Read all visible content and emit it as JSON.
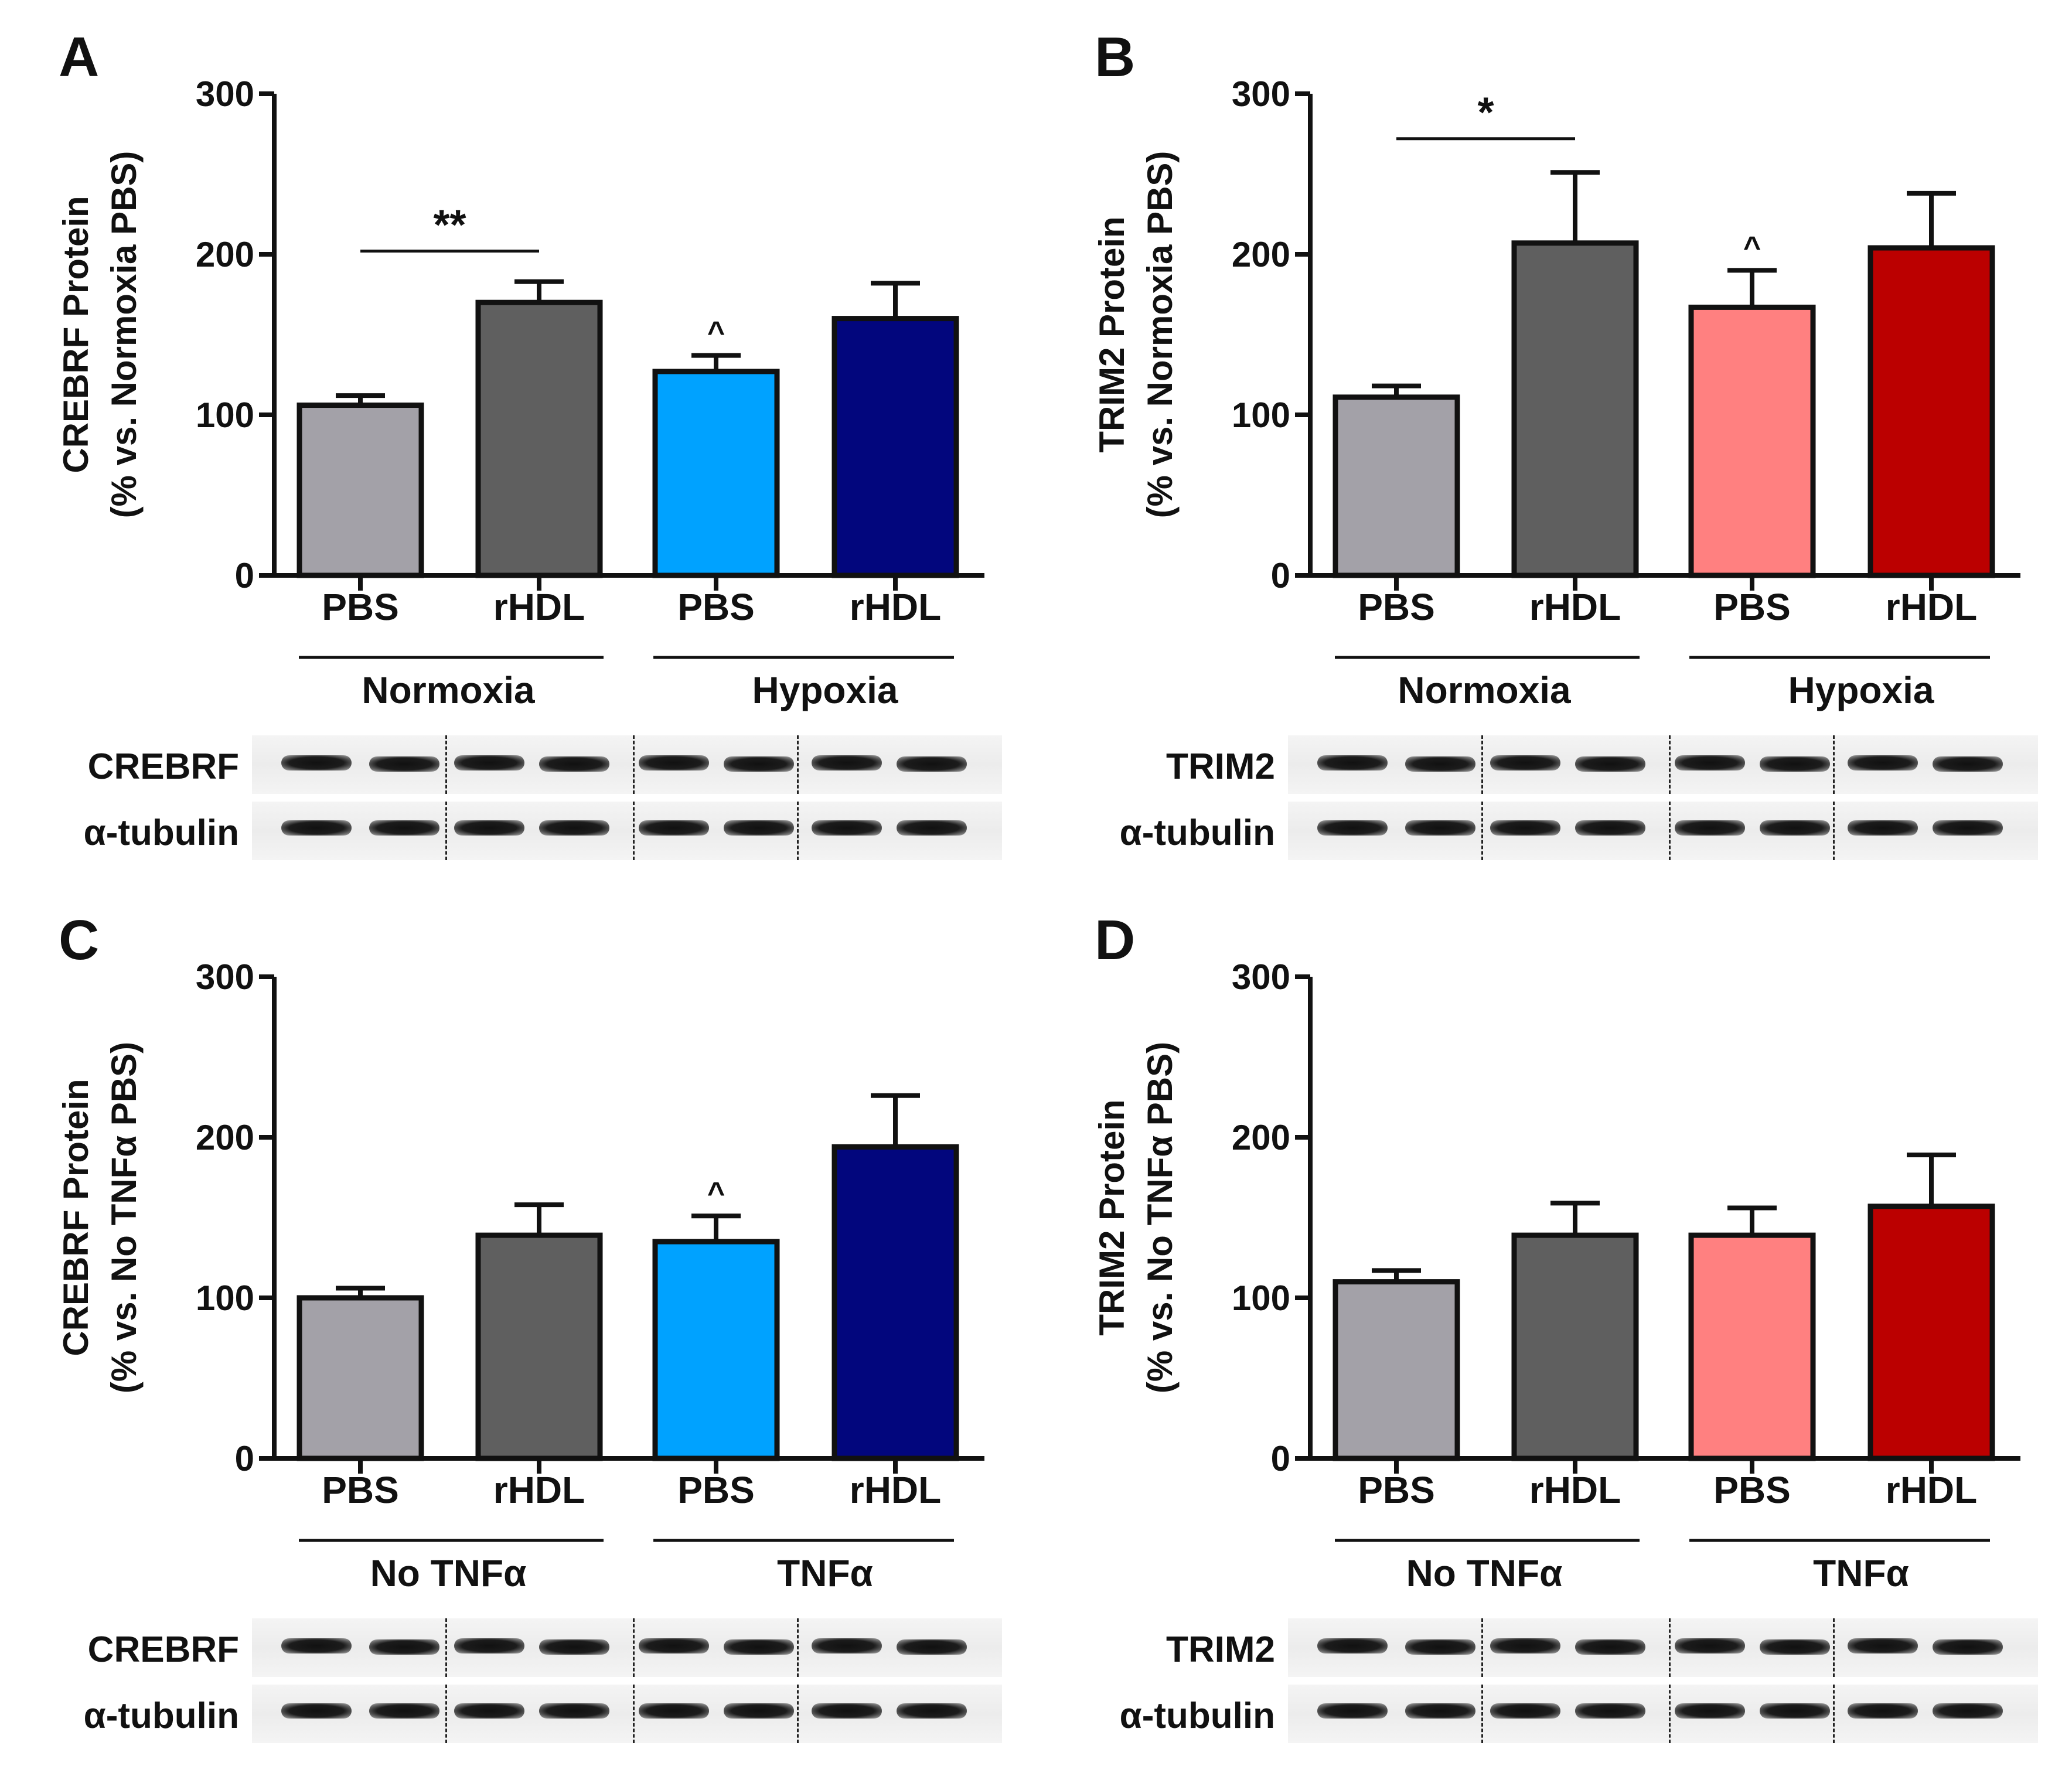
{
  "chart_data": [
    {
      "panel": "A",
      "type": "bar",
      "ylabel": "CREBRF Protein",
      "ylabel2": "(% vs. Normoxia PBS)",
      "ylim": [
        0,
        300
      ],
      "yticks": [
        "0",
        "100",
        "200",
        "300"
      ],
      "categories": [
        "PBS",
        "rHDL",
        "PBS",
        "rHDL"
      ],
      "groups": [
        "Normoxia",
        "Hypoxia"
      ],
      "values": [
        106,
        170,
        127,
        160
      ],
      "errors": [
        6,
        13,
        10,
        22
      ],
      "colors": [
        "#a3a1a8",
        "#5f5f5f",
        "#00a2ff",
        "#02067d"
      ],
      "annotations": [
        {
          "type": "bracket",
          "from": 0,
          "to": 1,
          "label": "**",
          "y": 202
        }
      ],
      "markers": [
        {
          "bar": 2,
          "label": "^"
        }
      ],
      "blot_labels": [
        "CREBRF",
        "α-tubulin"
      ]
    },
    {
      "panel": "B",
      "type": "bar",
      "ylabel": "TRIM2 Protein",
      "ylabel2": "(% vs. Normoxia PBS)",
      "ylim": [
        0,
        300
      ],
      "yticks": [
        "0",
        "100",
        "200",
        "300"
      ],
      "categories": [
        "PBS",
        "rHDL",
        "PBS",
        "rHDL"
      ],
      "groups": [
        "Normoxia",
        "Hypoxia"
      ],
      "values": [
        111,
        207,
        167,
        204
      ],
      "errors": [
        7,
        44,
        23,
        34
      ],
      "colors": [
        "#a3a1a8",
        "#5f5f5f",
        "#ff8080",
        "#bb0000"
      ],
      "annotations": [
        {
          "type": "bracket",
          "from": 0,
          "to": 1,
          "label": "*",
          "y": 272
        }
      ],
      "markers": [
        {
          "bar": 2,
          "label": "^"
        }
      ],
      "blot_labels": [
        "TRIM2",
        "α-tubulin"
      ]
    },
    {
      "panel": "C",
      "type": "bar",
      "ylabel": "CREBRF Protein",
      "ylabel2": "(% vs. No TNFα PBS)",
      "ylim": [
        0,
        300
      ],
      "yticks": [
        "0",
        "100",
        "200",
        "300"
      ],
      "categories": [
        "PBS",
        "rHDL",
        "PBS",
        "rHDL"
      ],
      "groups": [
        "No TNFα",
        "TNFα"
      ],
      "values": [
        100,
        139,
        135,
        194
      ],
      "errors": [
        6,
        19,
        16,
        32
      ],
      "colors": [
        "#a3a1a8",
        "#5f5f5f",
        "#00a2ff",
        "#02067d"
      ],
      "annotations": [],
      "markers": [
        {
          "bar": 2,
          "label": "^"
        }
      ],
      "blot_labels": [
        "CREBRF",
        "α-tubulin"
      ]
    },
    {
      "panel": "D",
      "type": "bar",
      "ylabel": "TRIM2 Protein",
      "ylabel2": "(% vs. No TNFα PBS)",
      "ylim": [
        0,
        300
      ],
      "yticks": [
        "0",
        "100",
        "200",
        "300"
      ],
      "categories": [
        "PBS",
        "rHDL",
        "PBS",
        "rHDL"
      ],
      "groups": [
        "No TNFα",
        "TNFα"
      ],
      "values": [
        110,
        139,
        139,
        157
      ],
      "errors": [
        7,
        20,
        17,
        32
      ],
      "colors": [
        "#a3a1a8",
        "#5f5f5f",
        "#ff8080",
        "#bb0000"
      ],
      "annotations": [],
      "markers": [],
      "blot_labels": [
        "TRIM2",
        "α-tubulin"
      ]
    }
  ]
}
